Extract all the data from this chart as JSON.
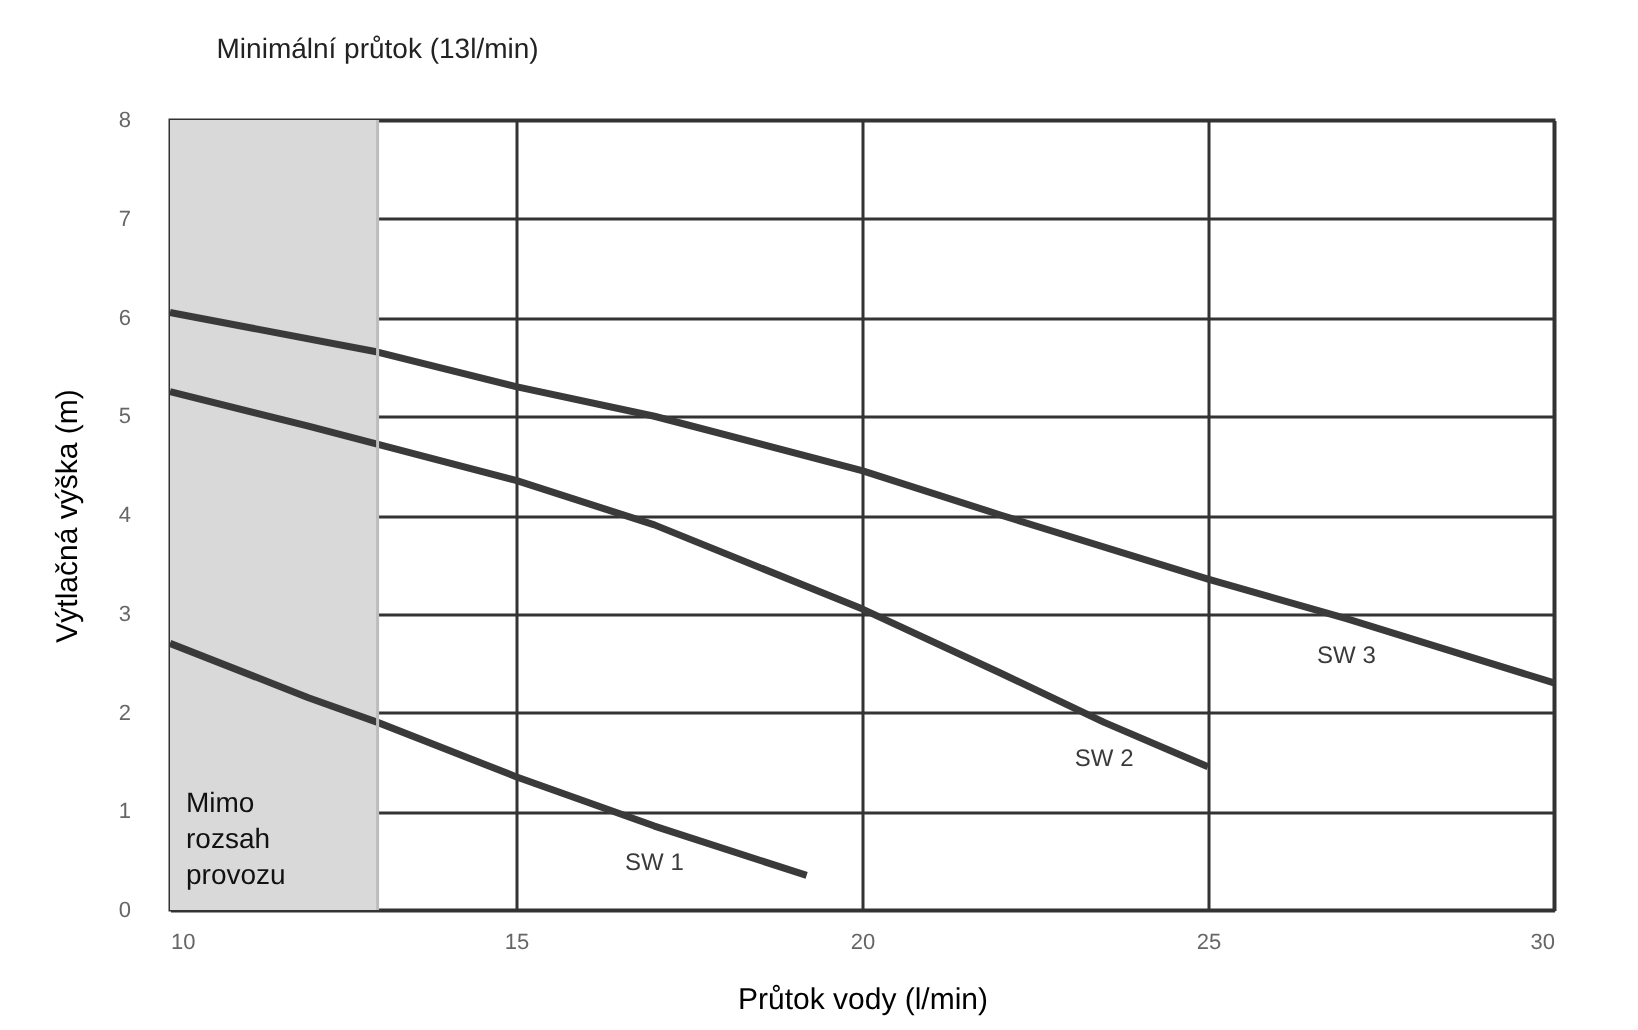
{
  "chart_data": {
    "type": "line",
    "xlabel": "Průtok vody (l/min)",
    "ylabel": "Výtlačná výška (m)",
    "xlim": [
      10,
      30
    ],
    "xticks": [
      10,
      15,
      20,
      25,
      30
    ],
    "ylim": [
      0,
      8
    ],
    "yticks": [
      0,
      1,
      2,
      3,
      4,
      5,
      6,
      7,
      8
    ],
    "grid": true,
    "series": [
      {
        "name": "SW 1",
        "color": "#3a3a3a",
        "x": [
          10,
          12,
          13,
          15,
          17,
          19.2
        ],
        "values": [
          2.7,
          2.15,
          1.9,
          1.35,
          0.85,
          0.35
        ]
      },
      {
        "name": "SW 2",
        "color": "#3a3a3a",
        "x": [
          10,
          12,
          15,
          17,
          20,
          22,
          23.5,
          25
        ],
        "values": [
          5.25,
          4.9,
          4.35,
          3.9,
          3.05,
          2.4,
          1.9,
          1.45
        ]
      },
      {
        "name": "SW 3",
        "color": "#3a3a3a",
        "x": [
          10,
          13,
          15,
          17,
          20,
          22,
          25,
          27,
          30
        ],
        "values": [
          6.05,
          5.65,
          5.3,
          5.0,
          4.45,
          4.0,
          3.35,
          2.95,
          2.3
        ]
      }
    ],
    "bands": [
      {
        "axis": "x",
        "from": 10,
        "to": 13,
        "label": "Mimo rozsah provozu",
        "color": "#d9d9d9"
      }
    ],
    "ref_lines": [
      {
        "axis": "x",
        "value": 13,
        "label": "Minimální průtok (13l/min)",
        "color": "#bdbdbd"
      }
    ]
  }
}
